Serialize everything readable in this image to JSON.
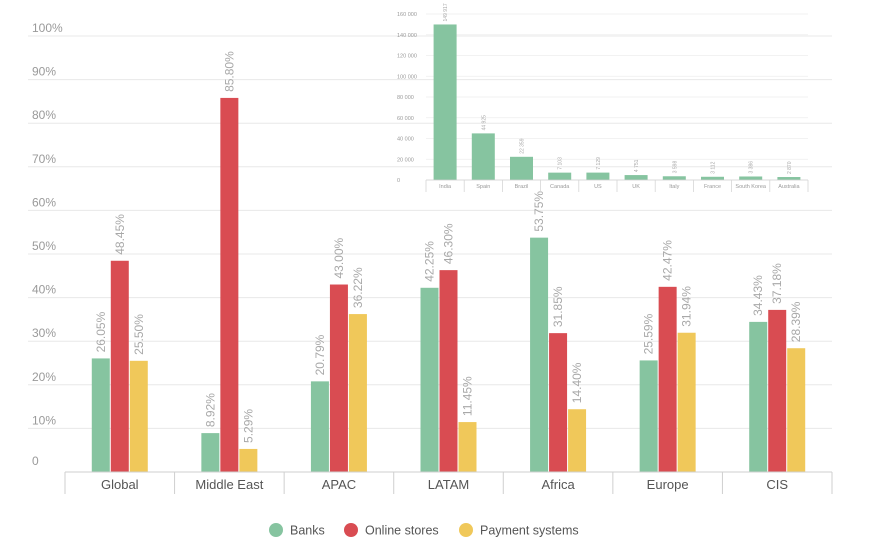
{
  "chart_data": [
    {
      "type": "bar",
      "title": "",
      "categories": [
        "Global",
        "Middle East",
        "APAC",
        "LATAM",
        "Africa",
        "Europe",
        "CIS"
      ],
      "series": [
        {
          "name": "Banks",
          "values": [
            26.05,
            8.92,
            20.79,
            42.25,
            53.75,
            25.59,
            34.43
          ]
        },
        {
          "name": "Online stores",
          "values": [
            48.45,
            85.8,
            43.0,
            46.3,
            31.85,
            42.47,
            37.18
          ]
        },
        {
          "name": "Payment systems",
          "values": [
            25.5,
            5.29,
            36.22,
            11.45,
            14.4,
            31.94,
            28.39
          ]
        }
      ],
      "value_labels": [
        [
          "26.05%",
          "8.92%",
          "20.79%",
          "42.25%",
          "53.75%",
          "25.59%",
          "34.43%"
        ],
        [
          "48.45%",
          "85.80%",
          "43.00%",
          "46.30%",
          "31.85%",
          "42.47%",
          "37.18%"
        ],
        [
          "25.50%",
          "5.29%",
          "36.22%",
          "11.45%",
          "14.40%",
          "31.94%",
          "28.39%"
        ]
      ],
      "ylim": [
        0,
        100
      ],
      "yticks": [
        "0",
        "10%",
        "20%",
        "30%",
        "40%",
        "50%",
        "60%",
        "70%",
        "80%",
        "90%",
        "100%"
      ],
      "xlabel": "",
      "ylabel": "",
      "grid": true,
      "legend": "bottom-center"
    },
    {
      "type": "bar",
      "title": "",
      "categories": [
        "India",
        "Spain",
        "Brazil",
        "Canada",
        "US",
        "UK",
        "Italy",
        "France",
        "South Korea",
        "Australia"
      ],
      "values": [
        149917,
        44925,
        22359,
        7103,
        7129,
        4751,
        3598,
        3112,
        3386,
        2870
      ],
      "value_labels": [
        "149 917",
        "44 925",
        "22 359",
        "7 103",
        "7 129",
        "4 751",
        "3 598",
        "3 112",
        "3 386",
        "2 870"
      ],
      "ylim": [
        0,
        160000
      ],
      "yticks": [
        "0",
        "20 000",
        "40 000",
        "60 000",
        "80 000",
        "100 000",
        "120 000",
        "140 000",
        "160 000"
      ],
      "xlabel": "",
      "ylabel": "",
      "grid": true
    }
  ],
  "colors": {
    "banks": "#86c4a0",
    "online_stores": "#d94c52",
    "payment_systems": "#f0c85a",
    "inset_bar": "#86c4a0",
    "grid": "#e8e8e8",
    "axis_text": "#9a9a9a",
    "label_text": "#a8a8a8",
    "category_text": "#555555"
  }
}
